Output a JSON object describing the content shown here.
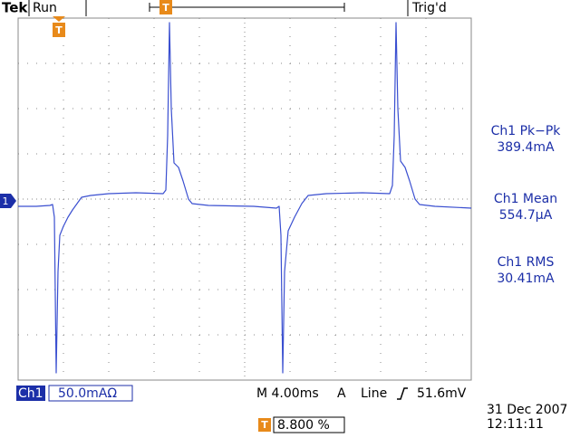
{
  "header": {
    "brand": "Tek",
    "state": "Run",
    "trigger_status": "Trig'd",
    "trigger_marker": "T"
  },
  "channel_marker": "1",
  "measurements": [
    {
      "label": "Ch1 Pk−Pk",
      "value": "389.4mA"
    },
    {
      "label": "Ch1 Mean",
      "value": "554.7µA"
    },
    {
      "label": "Ch1 RMS",
      "value": "30.41mA"
    }
  ],
  "footer": {
    "channel": "Ch1",
    "scale": "50.0mAΩ",
    "timebase": "M 4.00ms",
    "trigger_source": "A",
    "trigger_type": "Line",
    "trigger_level": "51.6mV",
    "trigger_marker": "T",
    "trigger_position": "8.800 %",
    "date": "31 Dec 2007",
    "time": "12:11:11"
  },
  "chart_data": {
    "type": "line",
    "x": [
      0,
      1.6,
      2.8,
      3.04,
      3.2,
      3.36,
      3.52,
      3.68,
      4.0,
      4.4,
      4.8,
      5.6,
      6.4,
      8.0,
      10.4,
      12.8,
      13.04,
      13.2,
      13.36,
      13.52,
      13.76,
      14.16,
      14.56,
      15.04,
      15.36,
      16.8,
      20.8,
      22.8,
      23.04,
      23.2,
      23.36,
      23.52,
      23.84,
      24.4,
      25.04,
      25.6,
      27.2,
      30.4,
      32.8,
      33.04,
      33.2,
      33.36,
      33.52,
      33.76,
      34.16,
      34.56,
      35.04,
      35.44,
      36.8,
      40
    ],
    "series": [
      {
        "name": "Ch1",
        "color": "#3a4fd0",
        "values": [
          -6,
          -6,
          -5,
          -4,
          -18,
          -190,
          -78,
          -38,
          -28,
          -18,
          -10,
          4,
          6,
          8,
          9,
          8,
          12,
          72,
          197,
          102,
          42,
          37,
          22,
          2,
          -3,
          -5,
          -6,
          -8,
          -6,
          -38,
          -190,
          -78,
          -33,
          -18,
          -3,
          6,
          8,
          9,
          8,
          17,
          72,
          197,
          102,
          44,
          37,
          22,
          2,
          -4,
          -6,
          -8
        ]
      }
    ],
    "xlim": [
      0,
      40
    ],
    "ylim": [
      -198,
      202
    ]
  }
}
